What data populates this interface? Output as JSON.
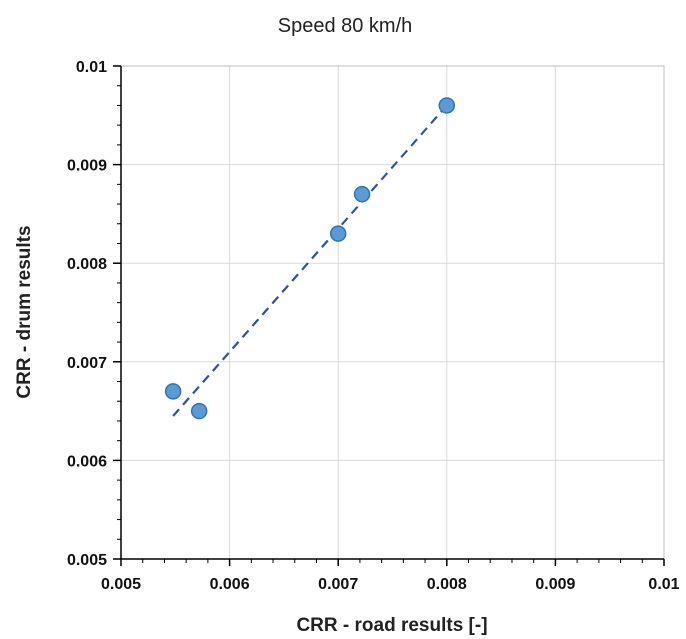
{
  "chart_data": {
    "type": "scatter",
    "title": "Speed 80 km/h",
    "xlabel": "CRR - road results [-]",
    "ylabel": "CRR - drum results",
    "xlim": [
      0.005,
      0.01
    ],
    "ylim": [
      0.005,
      0.01
    ],
    "x_ticks": [
      "0.005",
      "0.006",
      "0.007",
      "0.008",
      "0.009",
      "0.01"
    ],
    "y_ticks": [
      "0.005",
      "0.006",
      "0.007",
      "0.008",
      "0.009",
      "0.01"
    ],
    "grid": true,
    "legend": "none",
    "series": [
      {
        "x": [
          0.00548,
          0.00572,
          0.007,
          0.00722,
          0.008
        ],
        "y": [
          0.0067,
          0.0065,
          0.0083,
          0.0087,
          0.0096
        ]
      }
    ],
    "trendline": {
      "type": "linear",
      "x_range": [
        0.00548,
        0.008
      ],
      "y_range": [
        0.00645,
        0.0096
      ]
    },
    "colors": {
      "marker_fill": "#5b9bd5",
      "marker_edge": "#2e75b6",
      "trendline": "#2f5597"
    }
  }
}
